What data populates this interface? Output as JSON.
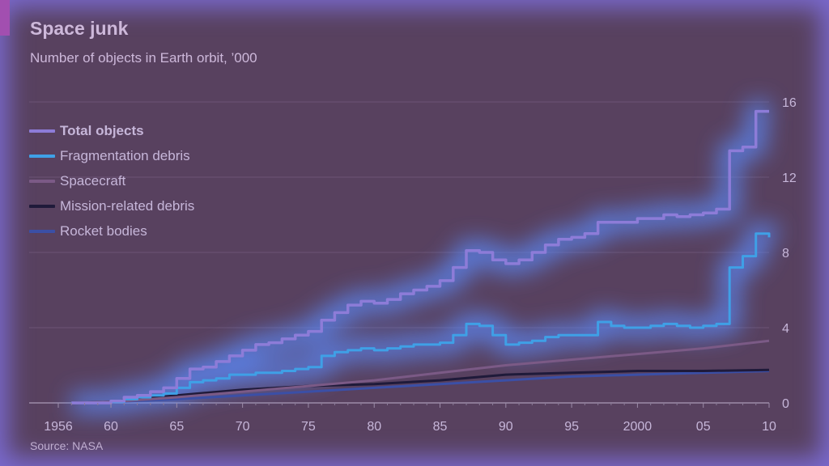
{
  "header": {
    "title": "Space junk",
    "subtitle": "Number of objects in Earth orbit, ’000"
  },
  "footer": {
    "source": "Source: NASA"
  },
  "colors": {
    "background": "#58415f",
    "glow": "#5b8cff",
    "total": "#8d7cd8",
    "fragmentation": "#3fa0e6",
    "spacecraft": "#7b5a86",
    "mission": "#1f1a3a",
    "rocket": "#3b4fa6"
  },
  "legend": [
    {
      "key": "total",
      "label": "Total objects"
    },
    {
      "key": "fragmentation",
      "label": "Fragmentation debris"
    },
    {
      "key": "spacecraft",
      "label": "Spacecraft"
    },
    {
      "key": "mission",
      "label": "Mission-related debris"
    },
    {
      "key": "rocket",
      "label": "Rocket bodies"
    }
  ],
  "chart_data": {
    "type": "line",
    "title": "Space junk",
    "subtitle": "Number of objects in Earth orbit, ’000",
    "xlabel": "",
    "ylabel": "",
    "xlim": [
      1956,
      2010
    ],
    "ylim": [
      0,
      16
    ],
    "x_ticks": [
      {
        "x": 1956,
        "label": "1956"
      },
      {
        "x": 1960,
        "label": "60"
      },
      {
        "x": 1965,
        "label": "65"
      },
      {
        "x": 1970,
        "label": "70"
      },
      {
        "x": 1975,
        "label": "75"
      },
      {
        "x": 1980,
        "label": "80"
      },
      {
        "x": 1985,
        "label": "85"
      },
      {
        "x": 1990,
        "label": "90"
      },
      {
        "x": 1995,
        "label": "95"
      },
      {
        "x": 2000,
        "label": "2000"
      },
      {
        "x": 2005,
        "label": "05"
      },
      {
        "x": 2010,
        "label": "10"
      }
    ],
    "y_ticks": [
      0,
      4,
      8,
      12,
      16
    ],
    "y_axis_side": "right",
    "grid": true,
    "legend_position": "top-left",
    "series": [
      {
        "key": "total",
        "name": "Total objects",
        "points": [
          [
            1957,
            0
          ],
          [
            1960,
            0.1
          ],
          [
            1961,
            0.3
          ],
          [
            1962,
            0.4
          ],
          [
            1963,
            0.6
          ],
          [
            1964,
            0.8
          ],
          [
            1965,
            1.3
          ],
          [
            1966,
            1.8
          ],
          [
            1967,
            1.9
          ],
          [
            1968,
            2.2
          ],
          [
            1969,
            2.5
          ],
          [
            1970,
            2.8
          ],
          [
            1971,
            3.1
          ],
          [
            1972,
            3.2
          ],
          [
            1973,
            3.4
          ],
          [
            1974,
            3.6
          ],
          [
            1975,
            3.8
          ],
          [
            1976,
            4.4
          ],
          [
            1977,
            4.8
          ],
          [
            1978,
            5.2
          ],
          [
            1979,
            5.4
          ],
          [
            1980,
            5.3
          ],
          [
            1981,
            5.5
          ],
          [
            1982,
            5.8
          ],
          [
            1983,
            6.0
          ],
          [
            1984,
            6.2
          ],
          [
            1985,
            6.5
          ],
          [
            1986,
            7.2
          ],
          [
            1987,
            8.1
          ],
          [
            1988,
            8.0
          ],
          [
            1989,
            7.6
          ],
          [
            1990,
            7.4
          ],
          [
            1991,
            7.6
          ],
          [
            1992,
            8.0
          ],
          [
            1993,
            8.4
          ],
          [
            1994,
            8.7
          ],
          [
            1995,
            8.8
          ],
          [
            1996,
            9.0
          ],
          [
            1997,
            9.6
          ],
          [
            1998,
            9.6
          ],
          [
            1999,
            9.6
          ],
          [
            2000,
            9.8
          ],
          [
            2001,
            9.8
          ],
          [
            2002,
            10.0
          ],
          [
            2003,
            9.9
          ],
          [
            2004,
            10.0
          ],
          [
            2005,
            10.1
          ],
          [
            2006,
            10.3
          ],
          [
            2007,
            13.4
          ],
          [
            2008,
            13.6
          ],
          [
            2009,
            15.5
          ],
          [
            2010,
            15.5
          ]
        ]
      },
      {
        "key": "fragmentation",
        "name": "Fragmentation debris",
        "points": [
          [
            1957,
            0
          ],
          [
            1960,
            0.05
          ],
          [
            1961,
            0.2
          ],
          [
            1962,
            0.3
          ],
          [
            1963,
            0.4
          ],
          [
            1964,
            0.5
          ],
          [
            1965,
            0.8
          ],
          [
            1966,
            1.1
          ],
          [
            1967,
            1.2
          ],
          [
            1968,
            1.3
          ],
          [
            1969,
            1.5
          ],
          [
            1970,
            1.5
          ],
          [
            1971,
            1.6
          ],
          [
            1972,
            1.6
          ],
          [
            1973,
            1.7
          ],
          [
            1974,
            1.8
          ],
          [
            1975,
            1.9
          ],
          [
            1976,
            2.5
          ],
          [
            1977,
            2.7
          ],
          [
            1978,
            2.8
          ],
          [
            1979,
            2.9
          ],
          [
            1980,
            2.8
          ],
          [
            1981,
            2.9
          ],
          [
            1982,
            3.0
          ],
          [
            1983,
            3.1
          ],
          [
            1984,
            3.1
          ],
          [
            1985,
            3.2
          ],
          [
            1986,
            3.6
          ],
          [
            1987,
            4.2
          ],
          [
            1988,
            4.1
          ],
          [
            1989,
            3.6
          ],
          [
            1990,
            3.1
          ],
          [
            1991,
            3.2
          ],
          [
            1992,
            3.3
          ],
          [
            1993,
            3.5
          ],
          [
            1994,
            3.6
          ],
          [
            1995,
            3.6
          ],
          [
            1996,
            3.6
          ],
          [
            1997,
            4.3
          ],
          [
            1998,
            4.1
          ],
          [
            1999,
            4.0
          ],
          [
            2000,
            4.0
          ],
          [
            2001,
            4.1
          ],
          [
            2002,
            4.2
          ],
          [
            2003,
            4.1
          ],
          [
            2004,
            4.0
          ],
          [
            2005,
            4.1
          ],
          [
            2006,
            4.2
          ],
          [
            2007,
            7.2
          ],
          [
            2008,
            7.8
          ],
          [
            2009,
            9.0
          ],
          [
            2010,
            8.8
          ]
        ]
      },
      {
        "key": "spacecraft",
        "name": "Spacecraft",
        "points": [
          [
            1957,
            0
          ],
          [
            1960,
            0.05
          ],
          [
            1965,
            0.3
          ],
          [
            1970,
            0.6
          ],
          [
            1975,
            0.9
          ],
          [
            1980,
            1.2
          ],
          [
            1985,
            1.6
          ],
          [
            1990,
            2.0
          ],
          [
            1995,
            2.3
          ],
          [
            2000,
            2.6
          ],
          [
            2005,
            2.9
          ],
          [
            2010,
            3.3
          ]
        ]
      },
      {
        "key": "mission",
        "name": "Mission-related debris",
        "points": [
          [
            1957,
            0
          ],
          [
            1960,
            0.05
          ],
          [
            1965,
            0.4
          ],
          [
            1970,
            0.7
          ],
          [
            1975,
            0.9
          ],
          [
            1980,
            1.0
          ],
          [
            1985,
            1.2
          ],
          [
            1990,
            1.5
          ],
          [
            1995,
            1.6
          ],
          [
            2000,
            1.7
          ],
          [
            2005,
            1.7
          ],
          [
            2010,
            1.75
          ]
        ]
      },
      {
        "key": "rocket",
        "name": "Rocket bodies",
        "points": [
          [
            1957,
            0
          ],
          [
            1960,
            0.05
          ],
          [
            1965,
            0.2
          ],
          [
            1970,
            0.4
          ],
          [
            1975,
            0.6
          ],
          [
            1980,
            0.8
          ],
          [
            1985,
            1.0
          ],
          [
            1990,
            1.2
          ],
          [
            1995,
            1.4
          ],
          [
            2000,
            1.5
          ],
          [
            2005,
            1.6
          ],
          [
            2010,
            1.7
          ]
        ]
      }
    ]
  }
}
